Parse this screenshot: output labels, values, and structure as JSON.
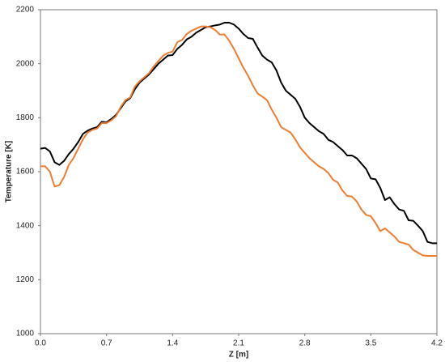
{
  "chart_data": {
    "type": "line",
    "x_label": "Z [m]",
    "y_label": "Temperature [K]",
    "x": [
      0,
      0.05,
      0.1,
      0.15,
      0.2,
      0.25,
      0.3,
      0.35,
      0.4,
      0.45,
      0.5,
      0.55,
      0.6,
      0.65,
      0.7,
      0.75,
      0.8,
      0.85,
      0.9,
      0.95,
      1.0,
      1.05,
      1.1,
      1.15,
      1.2,
      1.25,
      1.3,
      1.35,
      1.4,
      1.45,
      1.5,
      1.55,
      1.6,
      1.65,
      1.7,
      1.75,
      1.8,
      1.85,
      1.9,
      1.95,
      2.0,
      2.05,
      2.1,
      2.15,
      2.2,
      2.25,
      2.3,
      2.35,
      2.4,
      2.45,
      2.5,
      2.55,
      2.6,
      2.65,
      2.7,
      2.75,
      2.8,
      2.85,
      2.9,
      2.95,
      3.0,
      3.05,
      3.1,
      3.15,
      3.2,
      3.25,
      3.3,
      3.35,
      3.4,
      3.45,
      3.5,
      3.55,
      3.6,
      3.65,
      3.7,
      3.75,
      3.8,
      3.85,
      3.9,
      3.95,
      4.0,
      4.05,
      4.1,
      4.15,
      4.2
    ],
    "series": [
      {
        "color": "#000000",
        "values": [
          1685,
          1688,
          1675,
          1635,
          1625,
          1640,
          1665,
          1685,
          1710,
          1740,
          1752,
          1760,
          1765,
          1785,
          1783,
          1795,
          1810,
          1835,
          1860,
          1872,
          1905,
          1930,
          1945,
          1960,
          1980,
          2000,
          2015,
          2030,
          2032,
          2055,
          2070,
          2090,
          2100,
          2115,
          2125,
          2135,
          2138,
          2142,
          2145,
          2152,
          2152,
          2145,
          2130,
          2110,
          2095,
          2092,
          2060,
          2030,
          2015,
          2005,
          1975,
          1930,
          1900,
          1885,
          1870,
          1840,
          1800,
          1780,
          1765,
          1750,
          1740,
          1718,
          1710,
          1695,
          1680,
          1660,
          1660,
          1650,
          1630,
          1610,
          1575,
          1572,
          1540,
          1495,
          1505,
          1480,
          1460,
          1455,
          1420,
          1418,
          1400,
          1380,
          1340,
          1335,
          1335
        ]
      },
      {
        "color": "#ed7d31",
        "values": [
          1620,
          1620,
          1600,
          1545,
          1550,
          1580,
          1625,
          1650,
          1685,
          1720,
          1745,
          1755,
          1760,
          1780,
          1780,
          1790,
          1805,
          1840,
          1865,
          1875,
          1915,
          1935,
          1950,
          1965,
          1990,
          2010,
          2030,
          2040,
          2045,
          2080,
          2088,
          2110,
          2122,
          2130,
          2138,
          2138,
          2135,
          2125,
          2108,
          2108,
          2085,
          2055,
          2020,
          1985,
          1955,
          1920,
          1890,
          1878,
          1865,
          1830,
          1800,
          1765,
          1755,
          1745,
          1720,
          1690,
          1670,
          1650,
          1635,
          1620,
          1610,
          1595,
          1570,
          1560,
          1530,
          1510,
          1508,
          1490,
          1460,
          1440,
          1435,
          1410,
          1380,
          1390,
          1375,
          1360,
          1340,
          1335,
          1330,
          1310,
          1300,
          1290,
          1288,
          1288,
          1288
        ]
      }
    ],
    "xlim": [
      0,
      4.2
    ],
    "xticks": [
      {
        "value": 0,
        "label": "0.0"
      },
      0.7,
      1.4,
      2.1,
      2.8,
      3.5,
      4.2
    ],
    "ylim": [
      1000,
      2200
    ],
    "yticks": [
      1000,
      1200,
      1400,
      1600,
      1800,
      2000,
      2200
    ],
    "grid": false
  }
}
